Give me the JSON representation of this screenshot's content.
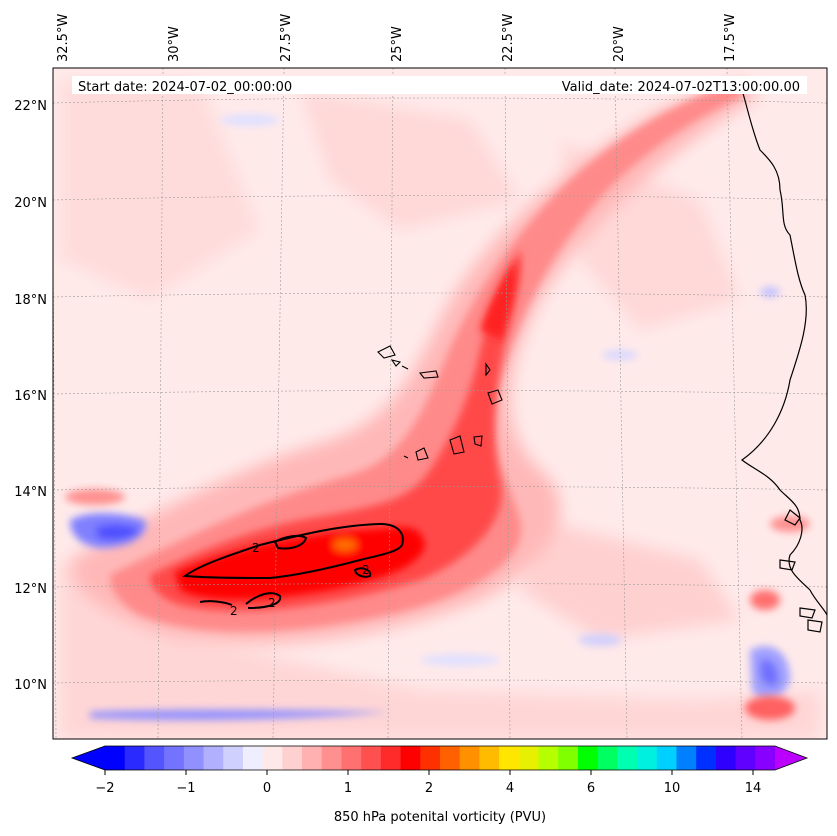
{
  "header": {
    "start_date": "Start date: 2024-07-02_00:00:00",
    "valid_date": "Valid_date: 2024-07-02T13:00:00.00"
  },
  "map": {
    "lon_ticks": [
      "32.5°W",
      "30°W",
      "27.5°W",
      "25°W",
      "22.5°W",
      "20°W",
      "17.5°W"
    ],
    "lat_ticks": [
      "22°N",
      "20°N",
      "18°N",
      "16°N",
      "14°N",
      "12°N",
      "10°N"
    ],
    "contour_level": "2",
    "contour_labels": [
      "2",
      "2",
      "2",
      "2"
    ]
  },
  "colorbar": {
    "label": "850 hPa potenital vorticity (PVU)",
    "tick_labels": [
      "−2",
      "−1",
      "0",
      "1",
      "2",
      "4",
      "6",
      "10",
      "14"
    ],
    "colors": [
      "#0000ff",
      "#2a2aff",
      "#5555ff",
      "#7373ff",
      "#9090ff",
      "#b0b0ff",
      "#d0d0ff",
      "#eeeeff",
      "#ffe8e8",
      "#ffd0d0",
      "#ffb0b0",
      "#ff9090",
      "#ff7070",
      "#ff5050",
      "#ff2a2a",
      "#ff0000",
      "#ff3000",
      "#ff6000",
      "#ff9000",
      "#ffbb00",
      "#ffe600",
      "#e6f000",
      "#b5ff00",
      "#80ff00",
      "#00ff00",
      "#00ff60",
      "#00ffb0",
      "#00f0e0",
      "#00d0ff",
      "#0080ff",
      "#0030ff",
      "#3000ff",
      "#6000ff",
      "#8800ff"
    ],
    "under_color": "#0000ff",
    "over_color": "#bb00ff"
  }
}
